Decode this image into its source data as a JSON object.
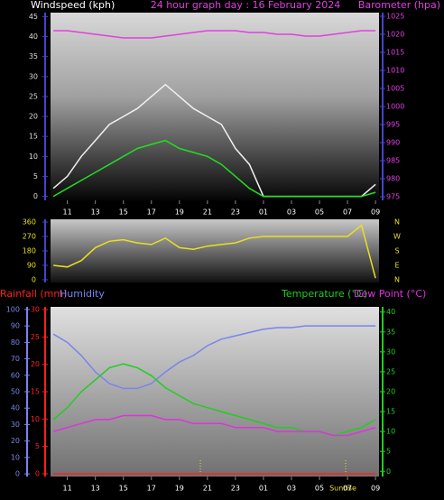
{
  "chart_data": [
    {
      "type": "line",
      "title": "24 hour graph day : 16 February 2024",
      "ylabel": "Windspeed (kph)",
      "y2label": "Barometer (hpa)",
      "x": [
        10,
        11,
        12,
        13,
        14,
        15,
        16,
        17,
        18,
        19,
        20,
        21,
        22,
        23,
        24,
        25,
        26,
        27,
        28,
        29,
        30,
        31,
        32,
        33
      ],
      "xlim": [
        9.8,
        33.25
      ],
      "xticks": [
        11,
        13,
        15,
        17,
        19,
        21,
        23,
        {
          "value": 25,
          "label": "01"
        },
        {
          "value": 27,
          "label": "03"
        },
        {
          "value": 29,
          "label": "05"
        },
        {
          "value": 31,
          "label": "07"
        },
        {
          "value": 33,
          "label": "09"
        }
      ],
      "ylim": [
        -1,
        46
      ],
      "yticks": [
        0,
        5,
        10,
        15,
        20,
        25,
        30,
        35,
        40,
        45
      ],
      "y2lim": [
        974,
        1026
      ],
      "y2ticks": [
        975,
        980,
        985,
        990,
        995,
        1000,
        1005,
        1010,
        1015,
        1020,
        1025
      ],
      "series": [
        {
          "color": "#f0f0f0",
          "values": [
            2,
            5,
            10,
            14,
            18,
            20,
            22,
            25,
            28,
            25,
            22,
            20,
            18,
            12,
            8,
            0,
            0,
            0,
            0,
            0,
            0,
            0,
            0,
            3
          ]
        },
        {
          "color": "#22dd22",
          "values": [
            0,
            2,
            4,
            6,
            8,
            10,
            12,
            13,
            14,
            12,
            11,
            10,
            8,
            5,
            2,
            0,
            0,
            0,
            0,
            0,
            0,
            0,
            0,
            1
          ]
        },
        {
          "color": "#e040e0",
          "axis": "y2",
          "values": [
            1021,
            1021,
            1020.5,
            1020,
            1019.5,
            1019,
            1019,
            1019,
            1019.5,
            1020,
            1020.5,
            1021,
            1021,
            1021,
            1020.5,
            1020.5,
            1020,
            1020,
            1019.5,
            1019.5,
            1020,
            1020.5,
            1021,
            1021
          ]
        }
      ]
    },
    {
      "type": "line",
      "x": [
        10,
        11,
        12,
        13,
        14,
        15,
        16,
        17,
        18,
        19,
        20,
        21,
        22,
        23,
        24,
        25,
        26,
        27,
        28,
        29,
        30,
        31,
        32,
        33
      ],
      "xlim": [
        9.8,
        33.25
      ],
      "ylim": [
        -17,
        377
      ],
      "yticks": [
        0,
        90,
        180,
        270,
        360
      ],
      "y2lim": [
        -17,
        377
      ],
      "y2ticks": [
        {
          "value": 360,
          "label": "N"
        },
        {
          "value": 270,
          "label": "W"
        },
        {
          "value": 180,
          "label": "S"
        },
        {
          "value": 90,
          "label": "E"
        },
        {
          "value": 0,
          "label": "N"
        }
      ],
      "series": [
        {
          "color": "#e8e020",
          "values": [
            90,
            80,
            120,
            200,
            240,
            250,
            230,
            220,
            260,
            200,
            190,
            210,
            220,
            230,
            260,
            270,
            270,
            270,
            270,
            270,
            270,
            270,
            340,
            10
          ]
        }
      ]
    },
    {
      "type": "line",
      "x": [
        10,
        11,
        12,
        13,
        14,
        15,
        16,
        17,
        18,
        19,
        20,
        21,
        22,
        23,
        24,
        25,
        26,
        27,
        28,
        29,
        30,
        31,
        32,
        33
      ],
      "xlim": [
        9.8,
        33.25
      ],
      "xticks": [
        11,
        13,
        15,
        17,
        19,
        21,
        23,
        {
          "value": 25,
          "label": "01"
        },
        {
          "value": 27,
          "label": "03"
        },
        {
          "value": 29,
          "label": "05"
        },
        {
          "value": 31,
          "label": "07"
        },
        {
          "value": 33,
          "label": "09"
        }
      ],
      "annotation": "Sunrise",
      "ylim": [
        -0.5,
        30.5
      ],
      "yticks": [
        0,
        5,
        10,
        15,
        20,
        25,
        30
      ],
      "humidity_lim": [
        -1.6,
        101.6
      ],
      "humidity_ticks": [
        0,
        10,
        20,
        30,
        40,
        50,
        60,
        70,
        80,
        90,
        100
      ],
      "y2lim": [
        -1.3,
        41.3
      ],
      "y2ticks": [
        0,
        5,
        10,
        15,
        20,
        25,
        30,
        35,
        40
      ],
      "series": [
        {
          "name": "Rainfall (mm)",
          "color": "#ff2020",
          "values": [
            0,
            0,
            0,
            0,
            0,
            0,
            0,
            0,
            0,
            0,
            0,
            0,
            0,
            0,
            0,
            0,
            0,
            0,
            0,
            0,
            0,
            0,
            0,
            0
          ]
        },
        {
          "name": "Humidity",
          "color": "#7b83ee",
          "axis": "humidity",
          "values": [
            85,
            80,
            72,
            62,
            55,
            52,
            52,
            55,
            62,
            68,
            72,
            78,
            82,
            84,
            86,
            88,
            89,
            89,
            90,
            90,
            90,
            90,
            90,
            90
          ]
        },
        {
          "name": "Temperature (°C)",
          "color": "#22cc22",
          "axis": "y2",
          "values": [
            13,
            16,
            20,
            23,
            26,
            27,
            26,
            24,
            21,
            19,
            17,
            16,
            15,
            14,
            13,
            12,
            11,
            11,
            10,
            10,
            9,
            10,
            11,
            13
          ]
        },
        {
          "name": "Dew Point (°C)",
          "color": "#e030e0",
          "axis": "y2",
          "values": [
            10,
            11,
            12,
            13,
            13,
            14,
            14,
            14,
            13,
            13,
            12,
            12,
            12,
            11,
            11,
            11,
            10,
            10,
            10,
            10,
            9,
            9,
            10,
            11
          ]
        }
      ]
    }
  ]
}
